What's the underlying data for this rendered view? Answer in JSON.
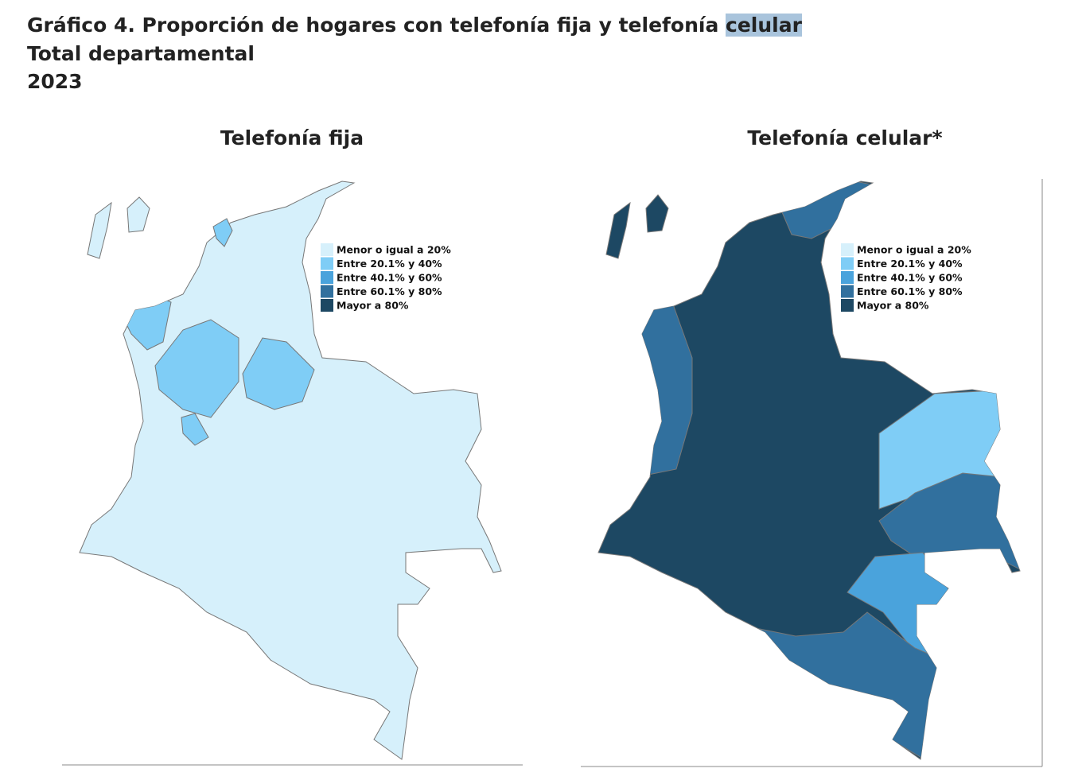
{
  "header": {
    "title": [
      "Gráfico 4. Proporción de hogares con telefonía fija y telefonía",
      "celular"
    ],
    "subtitle": "Total departamental",
    "year": "2023"
  },
  "legend": {
    "items": [
      {
        "label": "Menor o igual a 20%",
        "color": "#d6f0fb"
      },
      {
        "label": "Entre 20.1% y 40%",
        "color": "#7fcdf6"
      },
      {
        "label": "Entre 40.1% y 60%",
        "color": "#4aa3dc"
      },
      {
        "label": "Entre 60.1% y 80%",
        "color": "#31709e"
      },
      {
        "label": "Mayor a 80%",
        "color": "#1d4863"
      }
    ]
  },
  "maps": [
    {
      "title": "Telefonía fija"
    },
    {
      "title": "Telefonía celular*"
    }
  ]
}
